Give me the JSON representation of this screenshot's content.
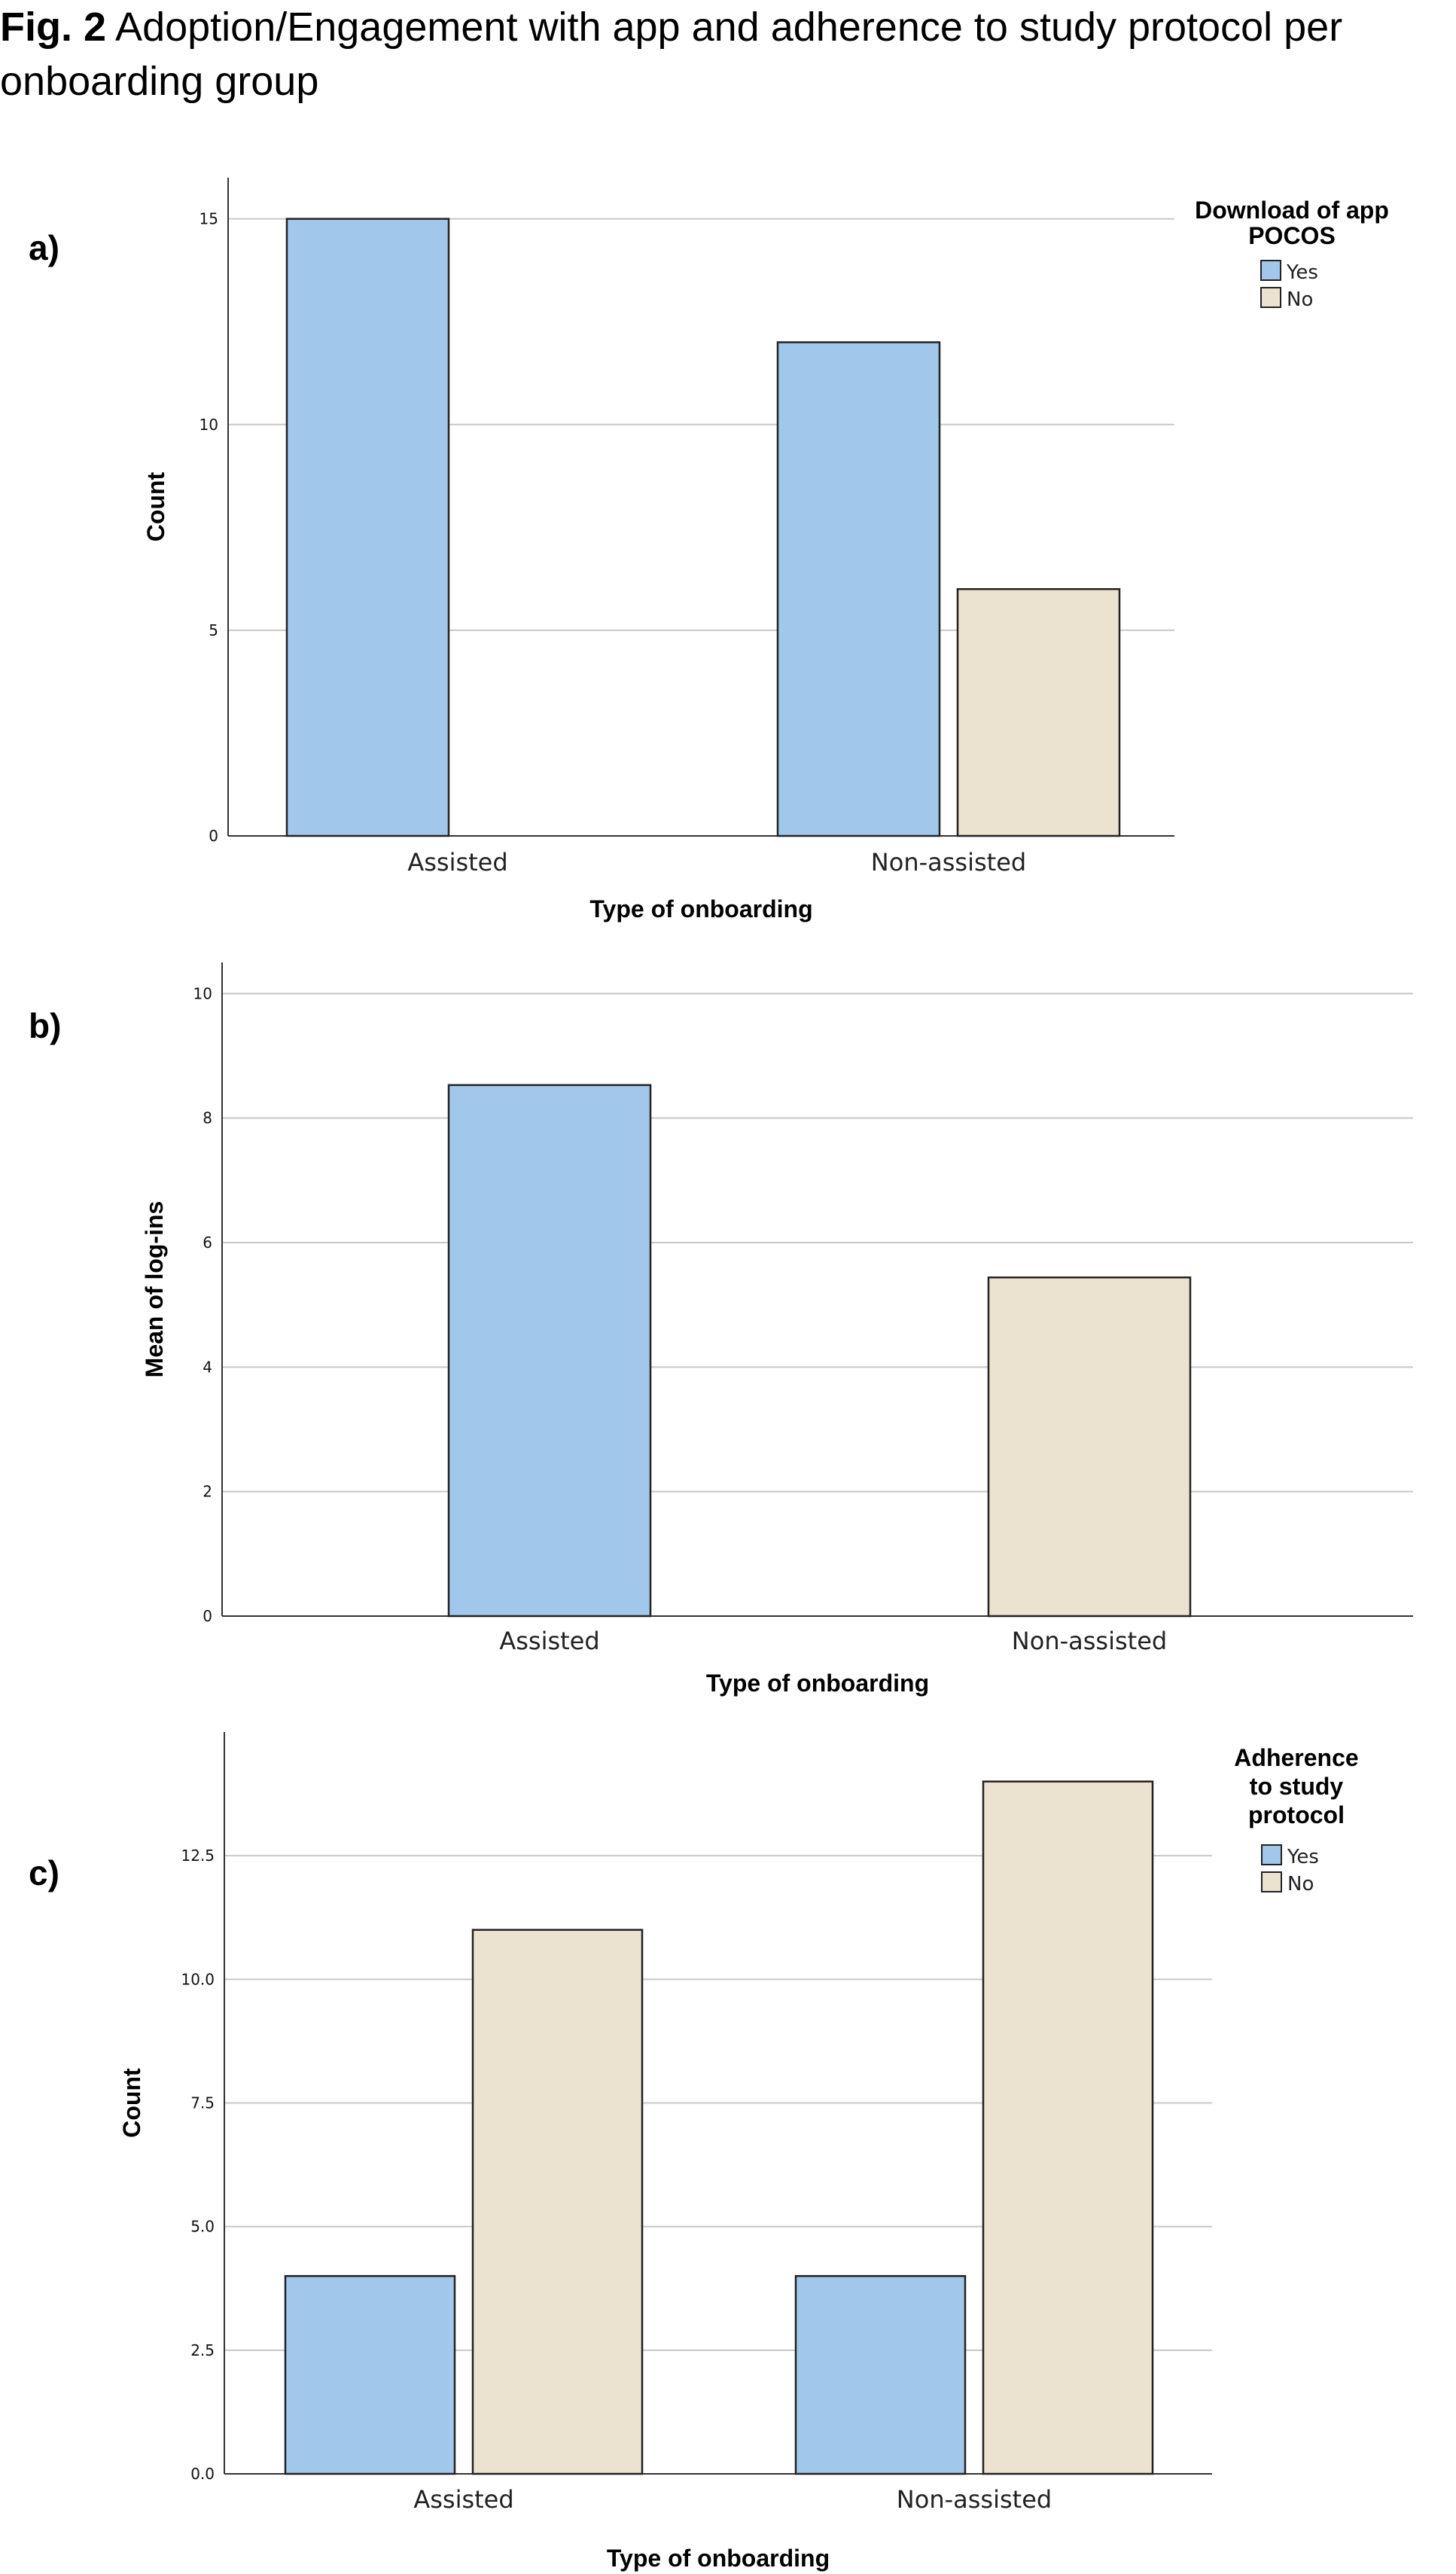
{
  "caption": {
    "label": "Fig. 2",
    "text": "Adoption/Engagement with app and adherence to study protocol per onboarding group"
  },
  "colors": {
    "yes": "#a1c8eb",
    "no": "#ebe3cf",
    "bar_stroke": "#222222",
    "grid": "#c8c8c8",
    "axis": "#333333"
  },
  "chart_data": [
    {
      "panel": "a)",
      "type": "bar",
      "categories": [
        "Assisted",
        "Non-assisted"
      ],
      "series": [
        {
          "name": "Yes",
          "color": "#a1c8eb",
          "values": [
            15,
            12
          ]
        },
        {
          "name": "No",
          "color": "#ebe3cf",
          "values": [
            0,
            6
          ]
        }
      ],
      "xlabel": "Type of onboarding",
      "ylabel": "Count",
      "ylim": [
        0,
        16
      ],
      "yticks": [
        0,
        5,
        10,
        15
      ],
      "ytick_labels": [
        "0",
        "5",
        "10",
        "15"
      ],
      "grid": true,
      "legend": {
        "title": "Download of app POCOS",
        "title_lines": [
          "Download of app",
          "POCOS"
        ],
        "placement": "top-right"
      }
    },
    {
      "panel": "b)",
      "type": "bar",
      "categories": [
        "Assisted",
        "Non-assisted"
      ],
      "series": [
        {
          "values": [
            8.53,
            5.44
          ]
        }
      ],
      "bar_colors": [
        "#a1c8eb",
        "#ebe3cf"
      ],
      "xlabel": "Type of onboarding",
      "ylabel": "Mean of log-ins",
      "ylim": [
        0,
        10.5
      ],
      "yticks": [
        0,
        2,
        4,
        6,
        8,
        10
      ],
      "ytick_labels": [
        "0",
        "2",
        "4",
        "6",
        "8",
        "10"
      ],
      "grid": true
    },
    {
      "panel": "c)",
      "type": "bar",
      "categories": [
        "Assisted",
        "Non-assisted"
      ],
      "series": [
        {
          "name": "Yes",
          "color": "#a1c8eb",
          "values": [
            4,
            4
          ]
        },
        {
          "name": "No",
          "color": "#ebe3cf",
          "values": [
            11,
            14
          ]
        }
      ],
      "xlabel": "Type of onboarding",
      "ylabel": "Count",
      "ylim": [
        0,
        15
      ],
      "yticks": [
        0,
        2.5,
        5,
        7.5,
        10,
        12.5
      ],
      "ytick_labels": [
        "0.0",
        "2.5",
        "5.0",
        "7.5",
        "10.0",
        "12.5"
      ],
      "grid": true,
      "legend": {
        "title": "Adherence to study protocol",
        "title_lines": [
          "Adherence",
          "to study",
          "protocol"
        ],
        "placement": "top-right"
      }
    }
  ]
}
